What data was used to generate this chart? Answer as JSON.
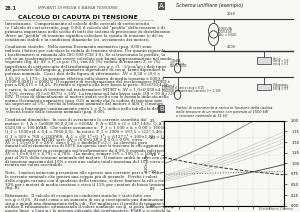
{
  "page_number": "28.1",
  "header": "IMPIANTI DI MEDIA E BASSA TENSIONE",
  "title": "CALCOLO DI CADUTA DI TENSIONE",
  "bg_color": "#f5f5f0",
  "text_color": "#222222",
  "section_a_label": "A",
  "section_a_title": "Schema unifilare (esempio)",
  "section_b_label": "B",
  "section_b_title1": "Fattori di scorrimento a carico in funzione della caduta",
  "section_b_title2": "della tensione di un motore con potenza di 1500 kW",
  "section_b_title3": "e tensione nominale di 11 kV",
  "legend_entries": [
    "fattore nominale",
    "Tensione nominale",
    "Coppia nominale",
    "Corrente nominale"
  ],
  "legend_colors": [
    "#555555",
    "#555555",
    "#555555",
    "#555555"
  ],
  "x_axis_label": "U/U_n",
  "y_left_label": "C/C_n, I/I_n",
  "y_right_label": "n/n_n",
  "xlim": [
    0.7,
    1.1
  ],
  "ylim_left": [
    0,
    2.5
  ],
  "ylim_right": [
    0,
    2.0
  ],
  "footer": "Elettroforni Carena"
}
